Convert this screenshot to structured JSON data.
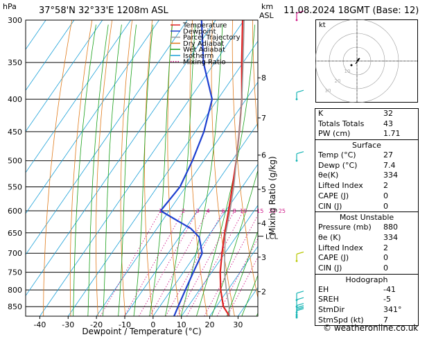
{
  "header": {
    "unit_hpa": "hPa",
    "location": "37°58'N 32°33'E 1208m ASL",
    "km_label": "km",
    "asl_label": "ASL",
    "datetime": "11.08.2024 18GMT (Base: 12)"
  },
  "chart_data": {
    "type": "line",
    "title": "",
    "xlabel": "Dewpoint / Temperature (°C)",
    "ylabel_right": "Mixing Ratio (g/kg)",
    "x_ticks": [
      -40,
      -30,
      -20,
      -10,
      0,
      10,
      20,
      30
    ],
    "xlim": [
      -45,
      37
    ],
    "pressure_levels": [
      300,
      350,
      400,
      450,
      500,
      550,
      600,
      650,
      700,
      750,
      800,
      850
    ],
    "plim": [
      300,
      880
    ],
    "km_ticks": [
      {
        "km": "8",
        "p": 370
      },
      {
        "km": "7",
        "p": 428
      },
      {
        "km": "6",
        "p": 490
      },
      {
        "km": "5",
        "p": 555
      },
      {
        "km": "4",
        "p": 628
      },
      {
        "km": "3",
        "p": 710
      },
      {
        "km": "2",
        "p": 805
      }
    ],
    "lcl": {
      "label": "LCL",
      "p": 658
    },
    "mixing_ratio_labels": [
      "1",
      "2",
      "3",
      "4",
      "6",
      "8",
      "10",
      "15",
      "20",
      "25"
    ],
    "mixing_ratio_values": [
      1,
      2,
      3,
      4,
      6,
      8,
      10,
      15,
      20,
      25
    ],
    "legend": [
      "Temperature",
      "Dewpoint",
      "Parcel Trajectory",
      "Dry Adiabat",
      "Wet Adiabat",
      "Isotherm",
      "Mixing Ratio"
    ],
    "legend_position": "top-left",
    "series": [
      {
        "name": "Temperature",
        "color": "#e02020",
        "points": [
          [
            880,
            27
          ],
          [
            850,
            22.5
          ],
          [
            800,
            17.5
          ],
          [
            750,
            13
          ],
          [
            700,
            9
          ],
          [
            650,
            5
          ],
          [
            600,
            1
          ],
          [
            550,
            -3.5
          ],
          [
            500,
            -8.5
          ],
          [
            450,
            -14.5
          ],
          [
            400,
            -21.5
          ],
          [
            350,
            -30.5
          ],
          [
            300,
            -40.5
          ]
        ]
      },
      {
        "name": "Dewpoint",
        "color": "#1d3fd0",
        "points": [
          [
            880,
            7.4
          ],
          [
            850,
            6.5
          ],
          [
            800,
            5
          ],
          [
            750,
            3.5
          ],
          [
            700,
            2
          ],
          [
            660,
            -3
          ],
          [
            640,
            -8
          ],
          [
            600,
            -23
          ],
          [
            550,
            -22
          ],
          [
            500,
            -24
          ],
          [
            450,
            -27
          ],
          [
            400,
            -32
          ],
          [
            370,
            -39
          ],
          [
            350,
            -44
          ],
          [
            300,
            -55
          ]
        ]
      },
      {
        "name": "Parcel Trajectory",
        "color": "#999999",
        "points": [
          [
            880,
            27
          ],
          [
            850,
            24.5
          ],
          [
            800,
            19.5
          ],
          [
            750,
            14.5
          ],
          [
            700,
            10
          ],
          [
            658,
            6
          ],
          [
            600,
            1.5
          ],
          [
            550,
            -3
          ],
          [
            500,
            -8.5
          ],
          [
            450,
            -14.5
          ],
          [
            400,
            -21.5
          ],
          [
            350,
            -30
          ],
          [
            300,
            -40
          ]
        ]
      }
    ],
    "wind_barbs_count": 10
  },
  "colors": {
    "dry_adiabat": "#e07a1a",
    "wet_adiabat": "#18a018",
    "isotherm": "#1aa0d8",
    "mixing_ratio": "#d01888",
    "wind": "#14b4b4",
    "wind_low": "#b8c800"
  },
  "hodograph": {
    "label": "kt",
    "ring_labels": [
      "10",
      "20",
      "30"
    ]
  },
  "indices": {
    "rows": [
      {
        "label": "K",
        "value": "32"
      },
      {
        "label": "Totals Totals",
        "value": "43"
      },
      {
        "label": "PW (cm)",
        "value": "1.71"
      }
    ]
  },
  "surface": {
    "title": "Surface",
    "rows": [
      {
        "label": "Temp (°C)",
        "value": "27"
      },
      {
        "label": "Dewp (°C)",
        "value": "7.4"
      },
      {
        "label": "θe(K)",
        "value": "334"
      },
      {
        "label": "Lifted Index",
        "value": "2"
      },
      {
        "label": "CAPE (J)",
        "value": "0"
      },
      {
        "label": "CIN (J)",
        "value": "0"
      }
    ]
  },
  "most_unstable": {
    "title": "Most Unstable",
    "rows": [
      {
        "label": "Pressure (mb)",
        "value": "880"
      },
      {
        "label": "θe (K)",
        "value": "334"
      },
      {
        "label": "Lifted Index",
        "value": "2"
      },
      {
        "label": "CAPE (J)",
        "value": "0"
      },
      {
        "label": "CIN (J)",
        "value": "0"
      }
    ]
  },
  "hodograph_params": {
    "title": "Hodograph",
    "rows": [
      {
        "label": "EH",
        "value": "-41"
      },
      {
        "label": "SREH",
        "value": "-5"
      },
      {
        "label": "StmDir",
        "value": "341°"
      },
      {
        "label": "StmSpd (kt)",
        "value": "7"
      }
    ]
  },
  "footer": {
    "credit": "© weatheronline.co.uk"
  }
}
